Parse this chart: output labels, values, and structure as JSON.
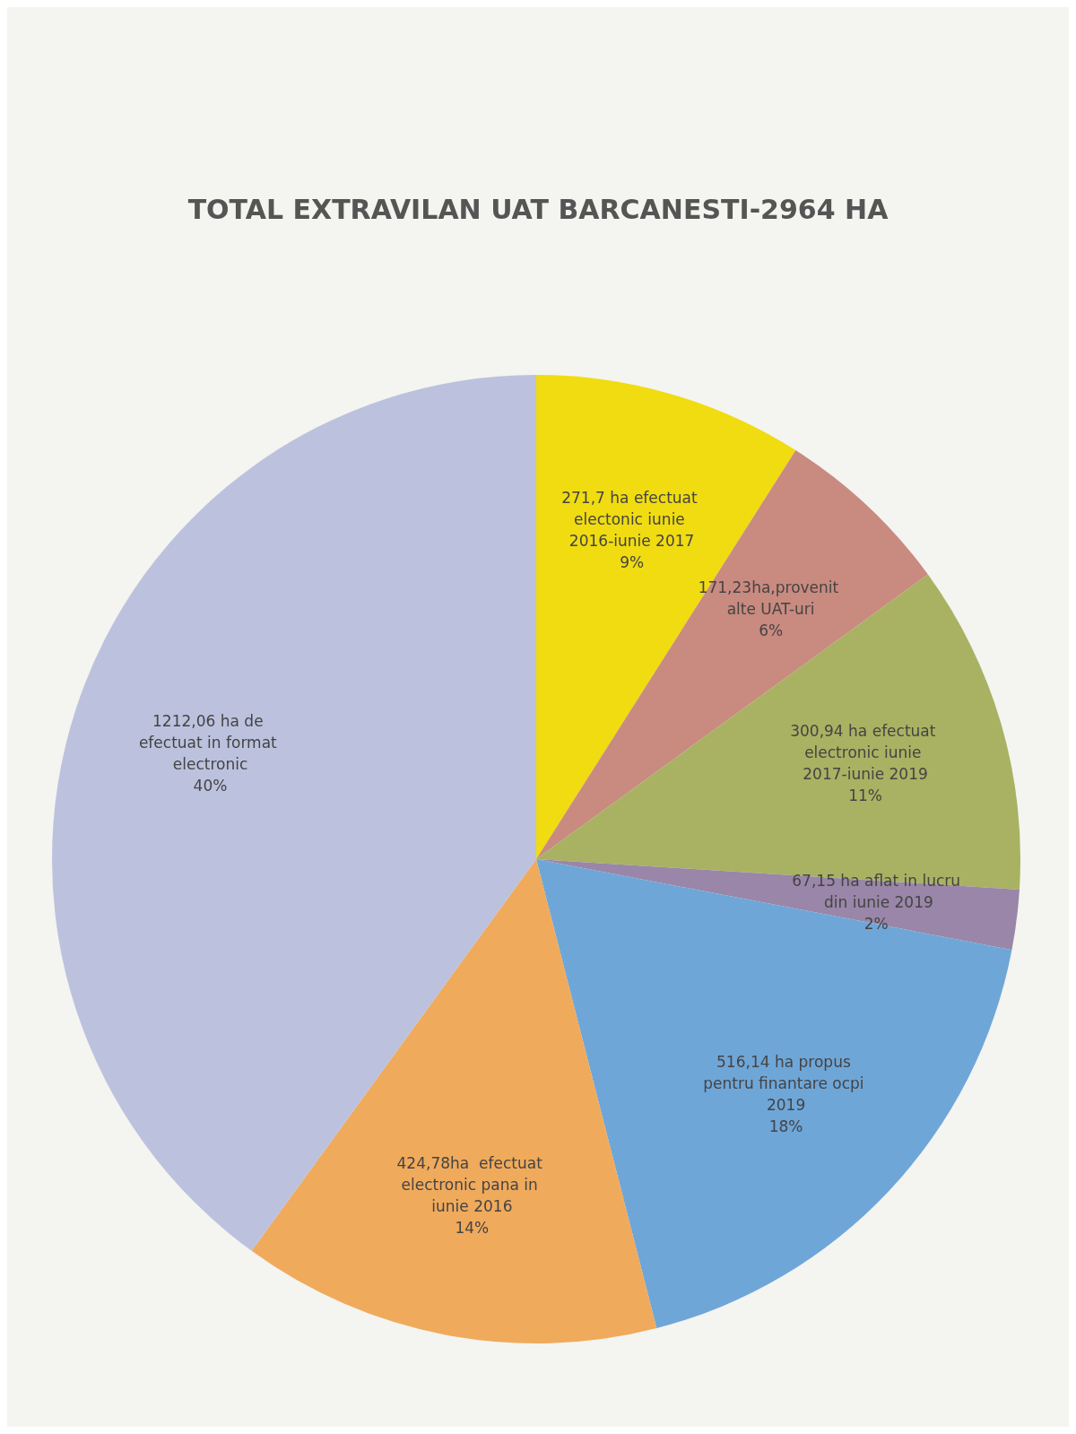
{
  "chart_data": {
    "type": "pie",
    "title": "TOTAL EXTRAVILAN UAT BARCANESTI-2964 HA",
    "categories": [
      "271,7 ha efectuat electonic iunie 2016-iunie 2017",
      "171,23ha,provenit alte UAT-uri",
      "300,94 ha efectuat electronic iunie 2017-iunie 2019",
      "67,15 ha aflat in lucru din iunie 2019",
      "516,14 ha propus pentru finantare ocpi 2019",
      "424,78ha  efectuat electronic pana in iunie 2016",
      "1212,06 ha de efectuat in format electronic"
    ],
    "values": [
      9,
      6,
      11,
      2,
      18,
      14,
      40
    ],
    "value_labels": [
      "9%",
      "6%",
      "11%",
      "2%",
      "18%",
      "14%",
      "40%"
    ],
    "colors": [
      "#f0dc10",
      "#c98a80",
      "#a8b262",
      "#9a86a8",
      "#6fa6d8",
      "#f0aa5c",
      "#bcc2de"
    ],
    "legend": false
  }
}
